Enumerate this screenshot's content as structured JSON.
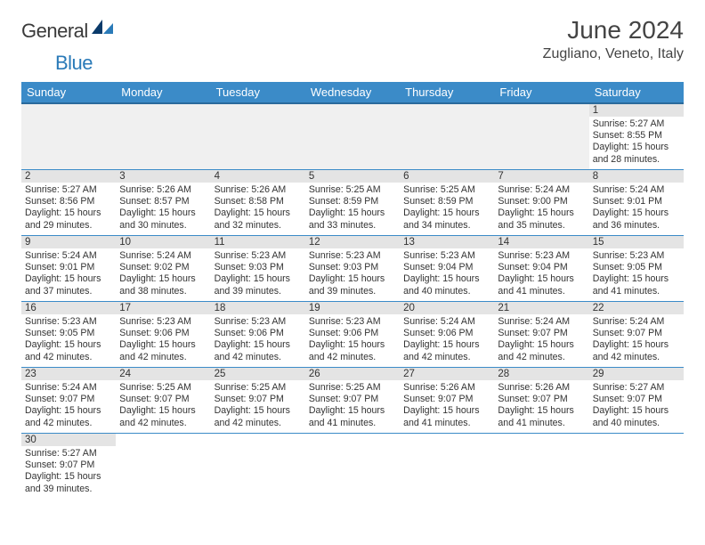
{
  "logo": {
    "dark": "General",
    "blue": "Blue"
  },
  "title": "June 2024",
  "subtitle": "Zugliano, Veneto, Italy",
  "colors": {
    "header_bg": "#3b8bc8",
    "header_border": "#2a6a9c",
    "daynum_bg": "#e4e4e4",
    "cell_border": "#3b8bc8",
    "logo_blue": "#2a7ab8",
    "logo_dark": "#3a3a3a",
    "text": "#333333",
    "page_bg": "#ffffff"
  },
  "weekdays": [
    "Sunday",
    "Monday",
    "Tuesday",
    "Wednesday",
    "Thursday",
    "Friday",
    "Saturday"
  ],
  "first_weekday_index": 6,
  "days": [
    {
      "n": 1,
      "sunrise": "5:27 AM",
      "sunset": "8:55 PM",
      "daylight": "15 hours and 28 minutes."
    },
    {
      "n": 2,
      "sunrise": "5:27 AM",
      "sunset": "8:56 PM",
      "daylight": "15 hours and 29 minutes."
    },
    {
      "n": 3,
      "sunrise": "5:26 AM",
      "sunset": "8:57 PM",
      "daylight": "15 hours and 30 minutes."
    },
    {
      "n": 4,
      "sunrise": "5:26 AM",
      "sunset": "8:58 PM",
      "daylight": "15 hours and 32 minutes."
    },
    {
      "n": 5,
      "sunrise": "5:25 AM",
      "sunset": "8:59 PM",
      "daylight": "15 hours and 33 minutes."
    },
    {
      "n": 6,
      "sunrise": "5:25 AM",
      "sunset": "8:59 PM",
      "daylight": "15 hours and 34 minutes."
    },
    {
      "n": 7,
      "sunrise": "5:24 AM",
      "sunset": "9:00 PM",
      "daylight": "15 hours and 35 minutes."
    },
    {
      "n": 8,
      "sunrise": "5:24 AM",
      "sunset": "9:01 PM",
      "daylight": "15 hours and 36 minutes."
    },
    {
      "n": 9,
      "sunrise": "5:24 AM",
      "sunset": "9:01 PM",
      "daylight": "15 hours and 37 minutes."
    },
    {
      "n": 10,
      "sunrise": "5:24 AM",
      "sunset": "9:02 PM",
      "daylight": "15 hours and 38 minutes."
    },
    {
      "n": 11,
      "sunrise": "5:23 AM",
      "sunset": "9:03 PM",
      "daylight": "15 hours and 39 minutes."
    },
    {
      "n": 12,
      "sunrise": "5:23 AM",
      "sunset": "9:03 PM",
      "daylight": "15 hours and 39 minutes."
    },
    {
      "n": 13,
      "sunrise": "5:23 AM",
      "sunset": "9:04 PM",
      "daylight": "15 hours and 40 minutes."
    },
    {
      "n": 14,
      "sunrise": "5:23 AM",
      "sunset": "9:04 PM",
      "daylight": "15 hours and 41 minutes."
    },
    {
      "n": 15,
      "sunrise": "5:23 AM",
      "sunset": "9:05 PM",
      "daylight": "15 hours and 41 minutes."
    },
    {
      "n": 16,
      "sunrise": "5:23 AM",
      "sunset": "9:05 PM",
      "daylight": "15 hours and 42 minutes."
    },
    {
      "n": 17,
      "sunrise": "5:23 AM",
      "sunset": "9:06 PM",
      "daylight": "15 hours and 42 minutes."
    },
    {
      "n": 18,
      "sunrise": "5:23 AM",
      "sunset": "9:06 PM",
      "daylight": "15 hours and 42 minutes."
    },
    {
      "n": 19,
      "sunrise": "5:23 AM",
      "sunset": "9:06 PM",
      "daylight": "15 hours and 42 minutes."
    },
    {
      "n": 20,
      "sunrise": "5:24 AM",
      "sunset": "9:06 PM",
      "daylight": "15 hours and 42 minutes."
    },
    {
      "n": 21,
      "sunrise": "5:24 AM",
      "sunset": "9:07 PM",
      "daylight": "15 hours and 42 minutes."
    },
    {
      "n": 22,
      "sunrise": "5:24 AM",
      "sunset": "9:07 PM",
      "daylight": "15 hours and 42 minutes."
    },
    {
      "n": 23,
      "sunrise": "5:24 AM",
      "sunset": "9:07 PM",
      "daylight": "15 hours and 42 minutes."
    },
    {
      "n": 24,
      "sunrise": "5:25 AM",
      "sunset": "9:07 PM",
      "daylight": "15 hours and 42 minutes."
    },
    {
      "n": 25,
      "sunrise": "5:25 AM",
      "sunset": "9:07 PM",
      "daylight": "15 hours and 42 minutes."
    },
    {
      "n": 26,
      "sunrise": "5:25 AM",
      "sunset": "9:07 PM",
      "daylight": "15 hours and 41 minutes."
    },
    {
      "n": 27,
      "sunrise": "5:26 AM",
      "sunset": "9:07 PM",
      "daylight": "15 hours and 41 minutes."
    },
    {
      "n": 28,
      "sunrise": "5:26 AM",
      "sunset": "9:07 PM",
      "daylight": "15 hours and 41 minutes."
    },
    {
      "n": 29,
      "sunrise": "5:27 AM",
      "sunset": "9:07 PM",
      "daylight": "15 hours and 40 minutes."
    },
    {
      "n": 30,
      "sunrise": "5:27 AM",
      "sunset": "9:07 PM",
      "daylight": "15 hours and 39 minutes."
    }
  ],
  "labels": {
    "sunrise": "Sunrise:",
    "sunset": "Sunset:",
    "daylight": "Daylight:"
  }
}
